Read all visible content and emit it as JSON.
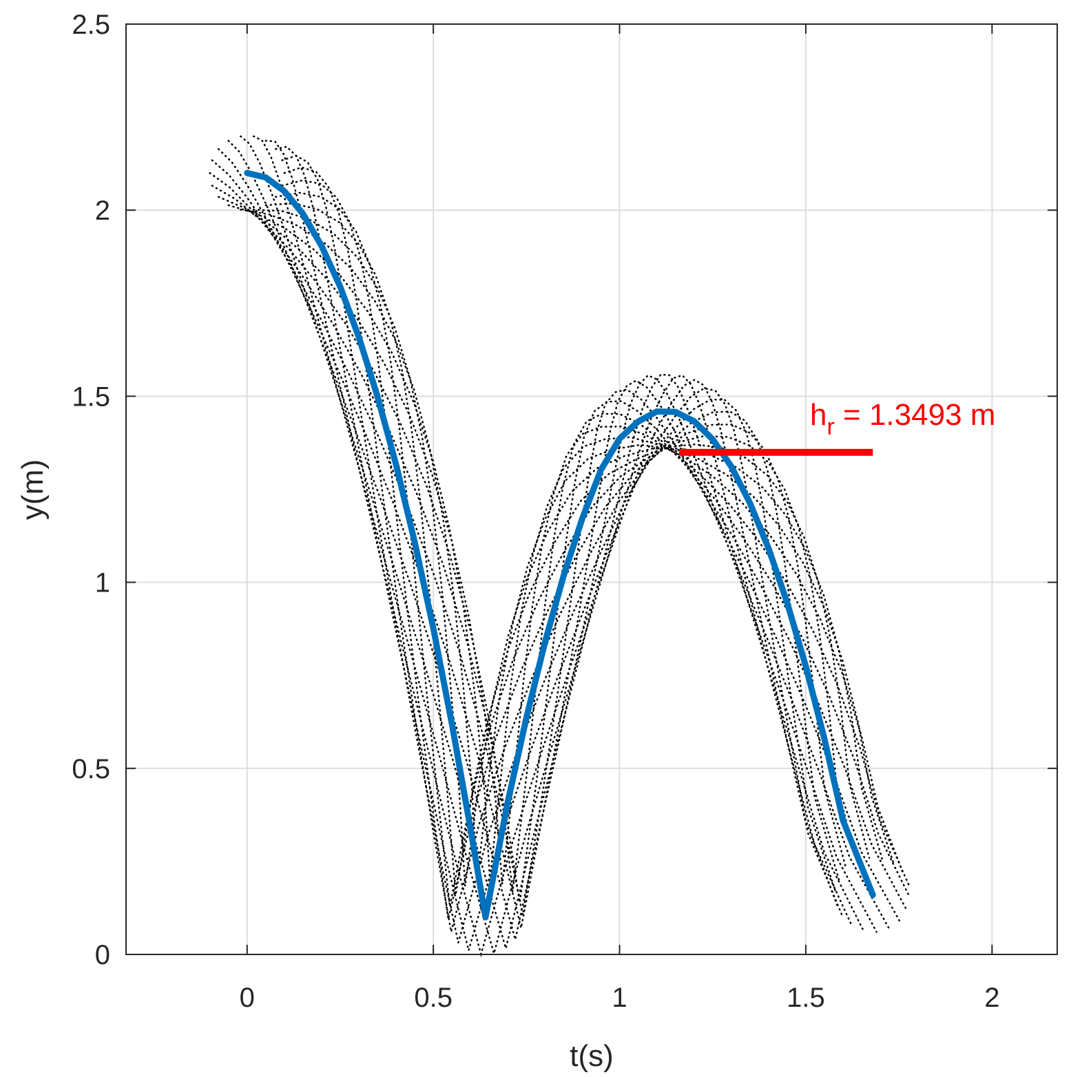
{
  "chart_data": {
    "type": "line",
    "title": "",
    "xlabel": "t(s)",
    "ylabel": "y(m)",
    "xlim": [
      -0.325,
      2.175
    ],
    "ylim": [
      0,
      2.5
    ],
    "grid": true,
    "xticks": [
      0,
      0.5,
      1,
      1.5,
      2
    ],
    "yticks": [
      0,
      0.5,
      1,
      1.5,
      2,
      2.5
    ],
    "xtick_labels": [
      "0",
      "0.5",
      "1",
      "1.5",
      "2"
    ],
    "ytick_labels": [
      "0",
      "0.5",
      "1",
      "1.5",
      "2",
      "2.5"
    ],
    "series": [
      {
        "name": "center trajectory",
        "color": "#0072bd",
        "style": "solid",
        "x": [
          0,
          0.05,
          0.1,
          0.15,
          0.2,
          0.25,
          0.3,
          0.35,
          0.4,
          0.45,
          0.5,
          0.55,
          0.6,
          0.64,
          0.7,
          0.75,
          0.8,
          0.85,
          0.9,
          0.95,
          1.0,
          1.05,
          1.1,
          1.15,
          1.2,
          1.25,
          1.3,
          1.35,
          1.4,
          1.45,
          1.5,
          1.55,
          1.6,
          1.68
        ],
        "y": [
          2.1,
          2.088,
          2.051,
          1.99,
          1.904,
          1.794,
          1.659,
          1.5,
          1.316,
          1.108,
          0.876,
          0.619,
          0.337,
          0.1,
          0.41,
          0.637,
          0.84,
          1.018,
          1.172,
          1.302,
          1.386,
          1.432,
          1.459,
          1.458,
          1.433,
          1.384,
          1.311,
          1.213,
          1.091,
          0.945,
          0.774,
          0.579,
          0.36,
          0.16
        ]
      }
    ],
    "envelope": {
      "name": "perimeter point paths",
      "color": "#000000",
      "style": "dotted",
      "radius": 0.1,
      "count": 18
    },
    "annotation": {
      "label_main": "h",
      "label_sub": "r",
      "label_rest": " = 1.3493 m",
      "color": "#ff0000",
      "value": 1.3493,
      "x_start": 1.16,
      "x_end": 1.68
    },
    "colors": {
      "axis": "#262626",
      "grid": "#dddddd",
      "annotation": "#ff0000"
    }
  }
}
